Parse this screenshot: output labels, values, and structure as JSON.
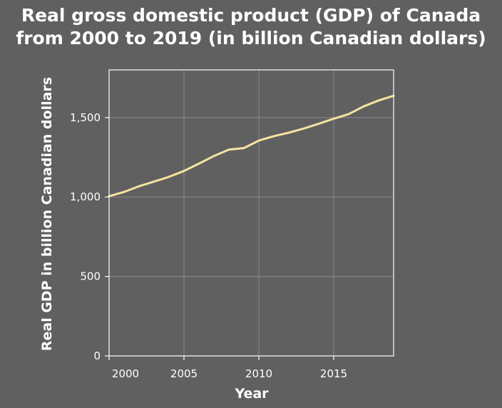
{
  "chart_data": {
    "type": "line",
    "title_lines": [
      "Real gross domestic product (GDP) of Canada",
      "from 2000 to 2019 (in billion Canadian dollars)"
    ],
    "xlabel": "Year",
    "ylabel": "Real GDP in billion Canadian dollars",
    "x": [
      2000,
      2001,
      2002,
      2003,
      2004,
      2005,
      2006,
      2007,
      2008,
      2009,
      2010,
      2011,
      2012,
      2013,
      2014,
      2015,
      2016,
      2017,
      2018,
      2019
    ],
    "series": [
      {
        "values": [
          1005,
          1032,
          1068,
          1097,
          1127,
          1164,
          1210,
          1258,
          1298,
          1308,
          1355,
          1383,
          1405,
          1431,
          1461,
          1493,
          1522,
          1570,
          1608,
          1637
        ],
        "color": "#f6e3a0"
      }
    ],
    "xlim": [
      2000,
      2019
    ],
    "ylim": [
      0,
      1800
    ],
    "x_ticks": [
      2000,
      2005,
      2010,
      2015
    ],
    "x_tick_labels": [
      "2000",
      "2005",
      "2010",
      "2015"
    ],
    "y_ticks": [
      0,
      500,
      1000,
      1500
    ],
    "y_tick_labels": [
      "0",
      "500",
      "1,000",
      "1,500"
    ],
    "grid": true,
    "legend": "none"
  }
}
